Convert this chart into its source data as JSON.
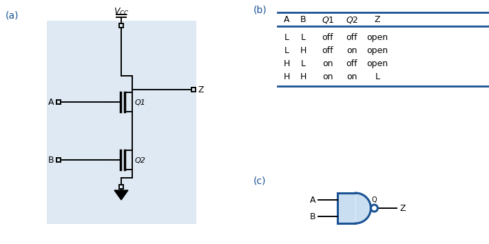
{
  "bg_color": "#ffffff",
  "circuit_bg": "#c5d8ea",
  "line_color": "#000000",
  "blue_color": "#1a5294",
  "label_color": "#1a5294",
  "figsize": [
    7.1,
    3.54
  ],
  "dpi": 100,
  "panel_a_label": "(a)",
  "panel_b_label": "(b)",
  "panel_c_label": "(c)",
  "vcc_label": "$V_{CC}$",
  "table_headers": [
    "A",
    "B",
    "Q1",
    "Q2",
    "Z"
  ],
  "table_rows": [
    [
      "L",
      "L",
      "off",
      "off",
      "open"
    ],
    [
      "L",
      "H",
      "off",
      "on",
      "open"
    ],
    [
      "H",
      "L",
      "on",
      "off",
      "open"
    ],
    [
      "H",
      "H",
      "on",
      "on",
      "L"
    ]
  ]
}
